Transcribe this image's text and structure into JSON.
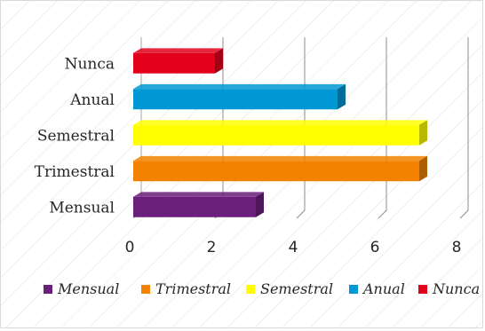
{
  "chart_data": {
    "type": "bar",
    "orientation": "horizontal",
    "style": "3d",
    "title": "",
    "xlabel": "",
    "ylabel": "",
    "categories": [
      "Mensual",
      "Trimestral",
      "Semestral",
      "Anual",
      "Nunca"
    ],
    "values": [
      3,
      7,
      7,
      5,
      2
    ],
    "colors": [
      "#6a1f7a",
      "#f28200",
      "#ffff00",
      "#0098d4",
      "#e3001b"
    ],
    "xlim": [
      0,
      8
    ],
    "xticks": [
      0,
      2,
      4,
      6,
      8
    ],
    "grid": true,
    "legend": {
      "placement": "bottom",
      "entries": [
        "Mensual",
        "Trimestral",
        "Semestral",
        "Anual",
        "Nunca"
      ]
    }
  }
}
